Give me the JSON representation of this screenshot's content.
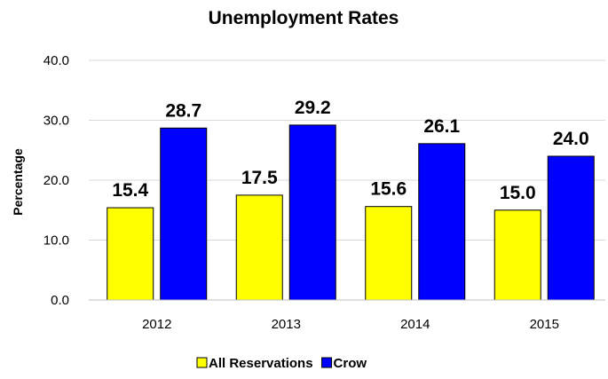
{
  "chart_data": {
    "type": "bar",
    "title": "Unemployment Rates",
    "ylabel": "Percentage",
    "xlabel": "",
    "categories": [
      "2012",
      "2013",
      "2014",
      "2015"
    ],
    "series": [
      {
        "name": "All Reservations",
        "values": [
          15.4,
          17.5,
          15.6,
          15.0
        ],
        "color": "#ffff00"
      },
      {
        "name": "Crow",
        "values": [
          28.7,
          29.2,
          26.1,
          24.0
        ],
        "color": "#0000ff"
      }
    ],
    "yticks": [
      "0.0",
      "10.0",
      "20.0",
      "30.0",
      "40.0"
    ],
    "ylim": [
      0,
      40
    ],
    "grid": true,
    "legend": "bottom"
  }
}
